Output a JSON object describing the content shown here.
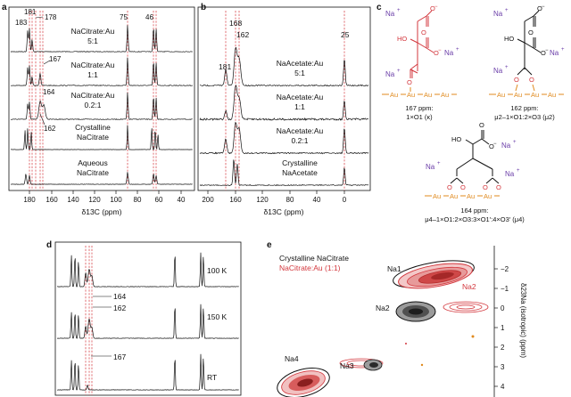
{
  "panels": {
    "a": {
      "letter": "a",
      "xlabel": "δ13C (ppm)",
      "xticks": [
        "180",
        "160",
        "140",
        "120",
        "100",
        "80",
        "60",
        "40"
      ],
      "peak_labels": [
        "183",
        "181",
        "178",
        "75",
        "46",
        "167",
        "164",
        "162"
      ],
      "trace_labels": [
        [
          "NaCitrate:Au",
          "5:1"
        ],
        [
          "NaCitrate:Au",
          "1:1"
        ],
        [
          "NaCitrate:Au",
          "0.2:1"
        ],
        [
          "Crystalline",
          "NaCitrate"
        ],
        [
          "Aqueous",
          "NaCitrate"
        ]
      ]
    },
    "b": {
      "letter": "b",
      "xlabel": "δ13C (ppm)",
      "xticks": [
        "200",
        "160",
        "120",
        "80",
        "40",
        "0"
      ],
      "peak_labels": [
        "168",
        "181",
        "162",
        "25"
      ],
      "trace_labels": [
        [
          "NaAcetate:Au",
          "5:1"
        ],
        [
          "NaAcetate:Au",
          "1:1"
        ],
        [
          "NaAcetate:Au",
          "0.2:1"
        ],
        [
          "Crystalline",
          "NaAcetate"
        ]
      ]
    },
    "c": {
      "letter": "c",
      "structures": [
        {
          "ppm": "167 ppm:",
          "mode": "1×O1 (κ)"
        },
        {
          "ppm": "162 ppm:",
          "mode": "μ2–1×O1:2×O3 (μ2)"
        },
        {
          "ppm": "164 ppm:",
          "mode": "μ4–1×O1:2×O3:3×O1′:4×O3′ (μ4)"
        }
      ],
      "na": "Na",
      "plus": "+",
      "ho": "HO",
      "o": "O",
      "minus": "−",
      "au": "Au"
    },
    "d": {
      "letter": "d",
      "temps": [
        "100 K",
        "150 K",
        "RT"
      ],
      "peak_labels": [
        "164",
        "162",
        "167"
      ]
    },
    "e": {
      "letter": "e",
      "legend": [
        "Crystalline NaCitrate",
        "NaCitrate:Au (1:1)"
      ],
      "site_labels": [
        "Na1",
        "Na2",
        "Na2",
        "Na4",
        "Na3"
      ],
      "ylabel": "δ23Na (isotropic) (ppm)",
      "yticks": [
        "−2",
        "−1",
        "0",
        "1",
        "2",
        "3",
        "4"
      ]
    }
  },
  "colors": {
    "red": "#d3373d",
    "purple": "#6a3da8",
    "orange": "#e08a1e",
    "black": "#111111"
  }
}
